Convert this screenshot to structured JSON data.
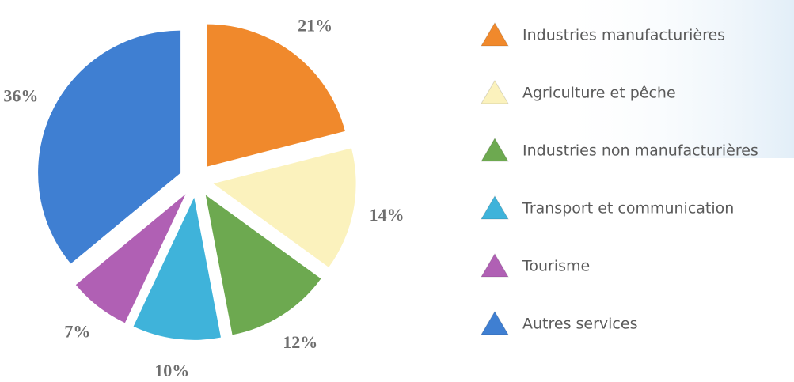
{
  "chart_data": {
    "type": "pie",
    "categories": [
      "Industries manufacturières",
      "Agriculture et pêche",
      "Industries non manufacturières",
      "Transport et communication",
      "Tourisme",
      "Autres services"
    ],
    "values": [
      21,
      14,
      12,
      10,
      7,
      36
    ],
    "value_labels": [
      "21%",
      "14%",
      "12%",
      "10%",
      "7%",
      "36%"
    ],
    "colors": [
      "#f0892c",
      "#fbf2bd",
      "#6da950",
      "#3fb3da",
      "#b060b4",
      "#3f7fd2"
    ]
  }
}
